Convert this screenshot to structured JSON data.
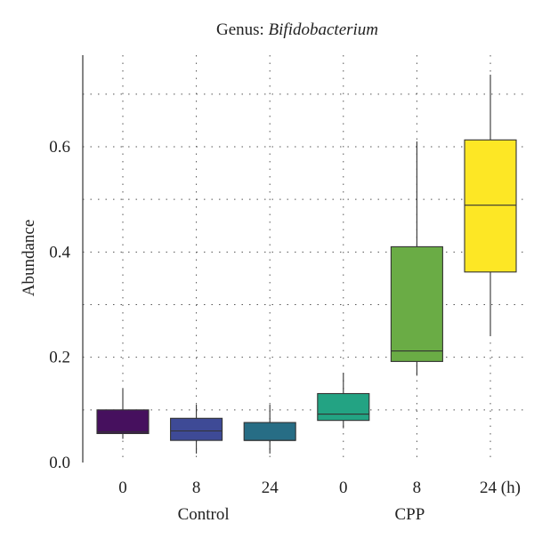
{
  "chart_data": {
    "type": "box",
    "title_prefix": "Genus: ",
    "title_italic": "Bifidobacterium",
    "ylabel": "Abundance",
    "ylim": [
      0,
      0.77
    ],
    "yticks": [
      0.0,
      0.2,
      0.4,
      0.6
    ],
    "ytick_labels": [
      "0.0",
      "0.2",
      "0.4",
      "0.6"
    ],
    "grid": true,
    "categories": [
      "0",
      "8",
      "24",
      "0",
      "8",
      "24 (h)"
    ],
    "groups": [
      {
        "label": "Control",
        "members": [
          0,
          1,
          2
        ]
      },
      {
        "label": "CPP",
        "members": [
          3,
          4,
          5
        ]
      }
    ],
    "boxes": [
      {
        "category": "0",
        "min": 0.045,
        "q1": 0.055,
        "median": 0.058,
        "q3": 0.1,
        "max": 0.14,
        "color": "#46105e"
      },
      {
        "category": "8",
        "min": 0.017,
        "q1": 0.042,
        "median": 0.06,
        "q3": 0.084,
        "max": 0.11,
        "color": "#3e4a96"
      },
      {
        "category": "24",
        "min": 0.017,
        "q1": 0.042,
        "median": 0.042,
        "q3": 0.076,
        "max": 0.11,
        "color": "#276d85"
      },
      {
        "category": "0",
        "min": 0.065,
        "q1": 0.08,
        "median": 0.092,
        "q3": 0.131,
        "max": 0.17,
        "color": "#23a383"
      },
      {
        "category": "8",
        "min": 0.165,
        "q1": 0.192,
        "median": 0.212,
        "q3": 0.41,
        "max": 0.61,
        "color": "#6aac45"
      },
      {
        "category": "24 (h)",
        "min": 0.24,
        "q1": 0.362,
        "median": 0.489,
        "q3": 0.613,
        "max": 0.737,
        "color": "#fde725"
      }
    ]
  }
}
